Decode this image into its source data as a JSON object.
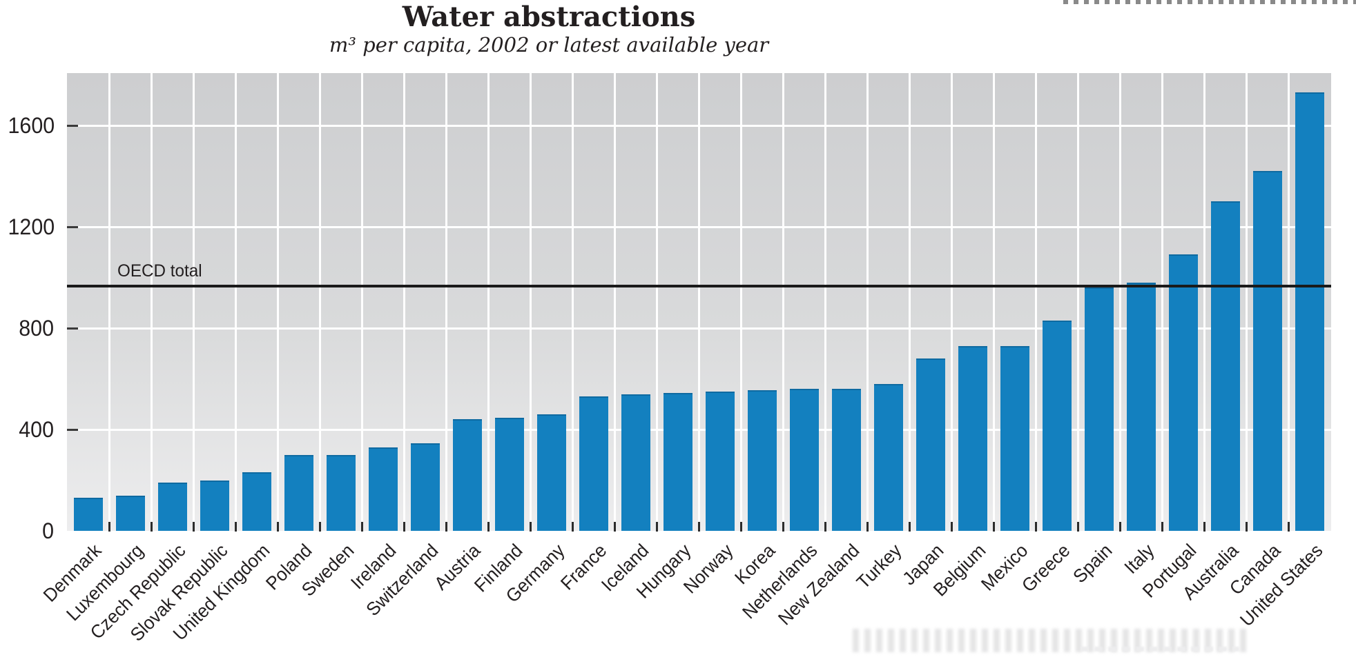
{
  "header": {
    "title": "Water abstractions",
    "subtitle": "m³ per capita, 2002 or latest available year"
  },
  "chart_data": {
    "type": "bar",
    "title": "Water abstractions",
    "subtitle": "m³ per capita, 2002 or latest available year",
    "ylabel": "m³ per capita",
    "xlabel": "",
    "ylim": [
      0,
      1800
    ],
    "yticks": [
      0,
      400,
      800,
      1200,
      1600
    ],
    "grid": true,
    "legend": "none",
    "categories": [
      "Denmark",
      "Luxembourg",
      "Czech Republic",
      "Slovak Republic",
      "United Kingdom",
      "Poland",
      "Sweden",
      "Ireland",
      "Switzerland",
      "Austria",
      "Finland",
      "Germany",
      "France",
      "Iceland",
      "Hungary",
      "Norway",
      "Korea",
      "Netherlands",
      "New Zealand",
      "Turkey",
      "Japan",
      "Belgium",
      "Mexico",
      "Greece",
      "Spain",
      "Italy",
      "Portugal",
      "Australia",
      "Canada",
      "United States"
    ],
    "values": [
      130,
      140,
      190,
      200,
      230,
      300,
      300,
      330,
      345,
      440,
      445,
      460,
      530,
      540,
      545,
      550,
      555,
      560,
      560,
      580,
      680,
      730,
      730,
      830,
      960,
      980,
      1090,
      1300,
      1420,
      1730
    ],
    "reference_line": {
      "label": "OECD total",
      "value": 965
    },
    "colors": {
      "bar": "#1380bf",
      "reference_line": "#1a1a1a",
      "plot_bg_top": "#cdced0",
      "plot_bg_bottom": "#ededee",
      "gridline": "#ffffff",
      "text": "#231f20"
    }
  }
}
